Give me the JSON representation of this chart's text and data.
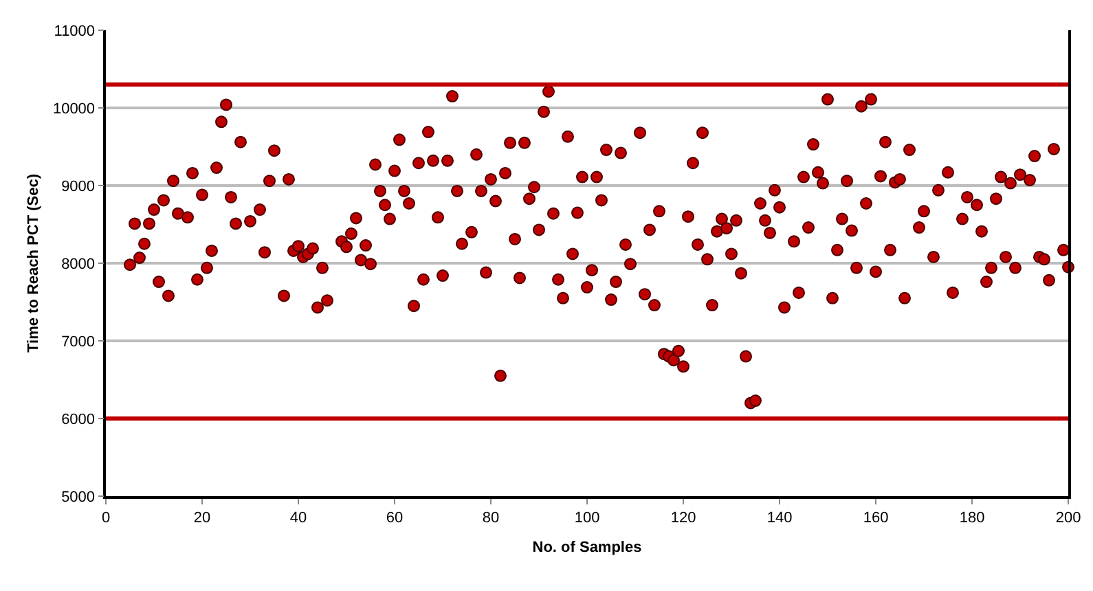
{
  "chart_data": {
    "type": "scatter",
    "xlabel": "No. of Samples",
    "ylabel": "Time to Reach PCT (Sec)",
    "xlim": [
      0,
      200
    ],
    "xticks": [
      0,
      20,
      40,
      60,
      80,
      100,
      120,
      140,
      160,
      180,
      200
    ],
    "ylim": [
      5000,
      11000
    ],
    "yticks": [
      5000,
      6000,
      7000,
      8000,
      9000,
      10000,
      11000
    ],
    "grid": "y",
    "marker": "circle",
    "ref_lines": [
      {
        "axis": "y",
        "value": 10300,
        "color": "#c00000"
      },
      {
        "axis": "y",
        "value": 6000,
        "color": "#c00000"
      }
    ],
    "series": [
      {
        "color": "#c00000",
        "x": [
          5,
          6,
          7,
          8,
          9,
          10,
          11,
          12,
          13,
          14,
          15,
          17,
          18,
          19,
          20,
          21,
          22,
          23,
          24,
          25,
          26,
          27,
          28,
          30,
          32,
          33,
          34,
          35,
          37,
          38,
          39,
          40,
          41,
          42,
          43,
          44,
          45,
          46,
          49,
          50,
          51,
          52,
          53,
          54,
          55,
          56,
          57,
          58,
          59,
          60,
          61,
          62,
          63,
          64,
          65,
          66,
          67,
          68,
          69,
          70,
          71,
          72,
          73,
          74,
          76,
          77,
          78,
          79,
          80,
          81,
          82,
          83,
          84,
          85,
          86,
          87,
          88,
          89,
          90,
          91,
          92,
          93,
          94,
          95,
          96,
          97,
          98,
          99,
          100,
          101,
          102,
          103,
          104,
          105,
          106,
          107,
          108,
          109,
          111,
          112,
          113,
          114,
          115,
          116,
          117,
          118,
          119,
          120,
          121,
          122,
          123,
          124,
          125,
          126,
          127,
          128,
          129,
          130,
          131,
          132,
          133,
          134,
          135,
          136,
          137,
          138,
          139,
          140,
          141,
          143,
          144,
          145,
          146,
          147,
          148,
          149,
          150,
          151,
          152,
          153,
          154,
          155,
          156,
          157,
          158,
          159,
          160,
          161,
          162,
          163,
          164,
          165,
          166,
          167,
          169,
          170,
          172,
          173,
          175,
          176,
          178,
          179,
          181,
          182,
          183,
          184,
          185,
          186,
          187,
          188,
          189,
          190,
          192,
          193,
          194,
          195,
          196,
          197,
          199,
          200
        ],
        "values": [
          7980,
          8510,
          8070,
          8250,
          8510,
          8690,
          7760,
          8810,
          7580,
          9060,
          8640,
          8590,
          9160,
          7790,
          8880,
          7940,
          8160,
          9230,
          9820,
          10040,
          8850,
          8510,
          9560,
          8540,
          8690,
          8140,
          9060,
          9450,
          7580,
          9080,
          8160,
          8220,
          8080,
          8120,
          8190,
          7430,
          7940,
          7520,
          8280,
          8210,
          8380,
          8580,
          8040,
          8230,
          7990,
          9270,
          8930,
          8750,
          8570,
          9190,
          9590,
          8930,
          8770,
          7450,
          9290,
          7790,
          9690,
          9320,
          8590,
          7840,
          9320,
          10150,
          8930,
          8250,
          8400,
          9400,
          8930,
          7880,
          9080,
          8800,
          6550,
          9160,
          9550,
          8310,
          7810,
          9550,
          8830,
          8980,
          8430,
          9950,
          10210,
          8640,
          7790,
          7550,
          9630,
          8120,
          8650,
          9110,
          7690,
          7910,
          9110,
          8810,
          9460,
          7530,
          7760,
          9420,
          8240,
          7990,
          9680,
          7600,
          8430,
          7460,
          8670,
          6830,
          6800,
          6750,
          6870,
          6670,
          8600,
          9290,
          8240,
          9680,
          8050,
          7460,
          8410,
          8570,
          8450,
          8120,
          8550,
          7870,
          6800,
          6200,
          6230,
          8770,
          8550,
          8390,
          8940,
          8720,
          7430,
          8280,
          7620,
          9110,
          8460,
          9530,
          9170,
          9030,
          10110,
          7550,
          8170,
          8570,
          9060,
          8420,
          7940,
          10020,
          8770,
          10110,
          7890,
          9120,
          9560,
          8170,
          9040,
          9080,
          7550,
          9460,
          8460,
          8670,
          8080,
          8940,
          9170,
          7620,
          8570,
          8850,
          8750,
          8410,
          7760,
          7940,
          8830,
          9110,
          8080,
          9030,
          7940,
          9140,
          9070,
          9380,
          8080,
          8050,
          7780,
          9470,
          8170,
          7950
        ]
      }
    ]
  }
}
